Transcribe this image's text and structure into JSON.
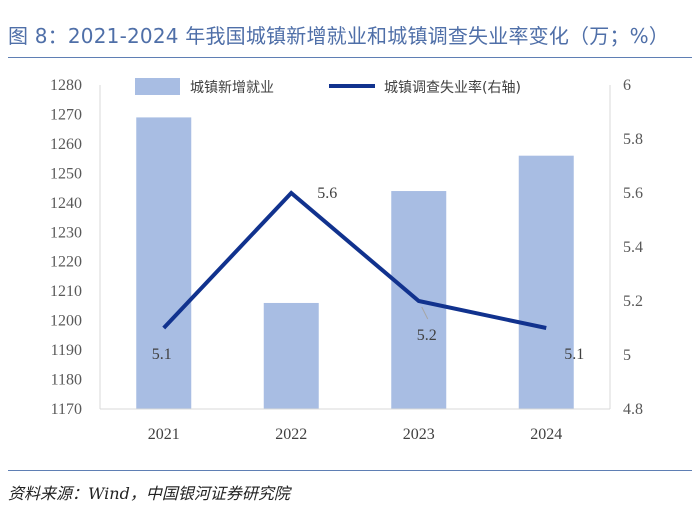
{
  "title": "图 8：2021-2024 年我国城镇新增就业和城镇调查失业率变化（万；%）",
  "source": "资料来源：Wind，中国银河证券研究院",
  "colors": {
    "bar": "#a8bde3",
    "line": "#11328e",
    "title": "#4f6fa8",
    "rule": "#5f7fb4"
  },
  "chart_data": {
    "type": "bar",
    "categories": [
      "2021",
      "2022",
      "2023",
      "2024"
    ],
    "series": [
      {
        "name": "城镇新增就业",
        "type": "bar",
        "axis": "left",
        "values": [
          1269,
          1206,
          1244,
          1256
        ]
      },
      {
        "name": "城镇调查失业率(右轴)",
        "type": "line",
        "axis": "right",
        "values": [
          5.1,
          5.6,
          5.2,
          5.1
        ],
        "data_labels": [
          "5.1",
          "5.6",
          "5.2",
          "5.1"
        ]
      }
    ],
    "left_axis": {
      "ylim": [
        1170,
        1280
      ],
      "ticks": [
        "1170",
        "1180",
        "1190",
        "1200",
        "1210",
        "1220",
        "1230",
        "1240",
        "1250",
        "1260",
        "1270",
        "1280"
      ]
    },
    "right_axis": {
      "ylim": [
        4.8,
        6
      ],
      "ticks": [
        "4.8",
        "5",
        "5.2",
        "5.4",
        "5.6",
        "5.8",
        "6"
      ]
    },
    "legend": {
      "position": "top",
      "items": [
        "城镇新增就业",
        "城镇调查失业率(右轴)"
      ]
    },
    "grid": false
  }
}
